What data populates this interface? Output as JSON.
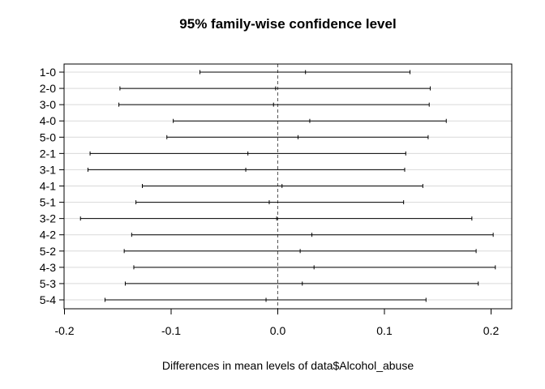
{
  "chart_data": {
    "type": "interval",
    "title": "95% family-wise confidence level",
    "xlabel": "Differences in mean levels of data$Alcohol_abuse",
    "xlim": [
      -0.2,
      0.2
    ],
    "xticks": [
      "-0.2",
      "-0.1",
      "0.0",
      "0.1",
      "0.2"
    ],
    "xtick_values": [
      -0.2,
      -0.1,
      0.0,
      0.1,
      0.2
    ],
    "reference_line": 0,
    "grid": "horizontal",
    "comparisons": [
      "1-0",
      "2-0",
      "3-0",
      "4-0",
      "5-0",
      "2-1",
      "3-1",
      "4-1",
      "5-1",
      "3-2",
      "4-2",
      "5-2",
      "4-3",
      "5-3",
      "5-4"
    ],
    "lower": [
      -0.073,
      -0.148,
      -0.149,
      -0.098,
      -0.104,
      -0.176,
      -0.178,
      -0.127,
      -0.133,
      -0.185,
      -0.137,
      -0.144,
      -0.135,
      -0.143,
      -0.162
    ],
    "estimate": [
      0.026,
      -0.002,
      -0.004,
      0.03,
      0.019,
      -0.028,
      -0.03,
      0.004,
      -0.008,
      -0.001,
      0.032,
      0.021,
      0.034,
      0.023,
      -0.011
    ],
    "upper": [
      0.124,
      0.143,
      0.142,
      0.158,
      0.141,
      0.12,
      0.119,
      0.136,
      0.118,
      0.182,
      0.202,
      0.186,
      0.204,
      0.188,
      0.139
    ]
  }
}
